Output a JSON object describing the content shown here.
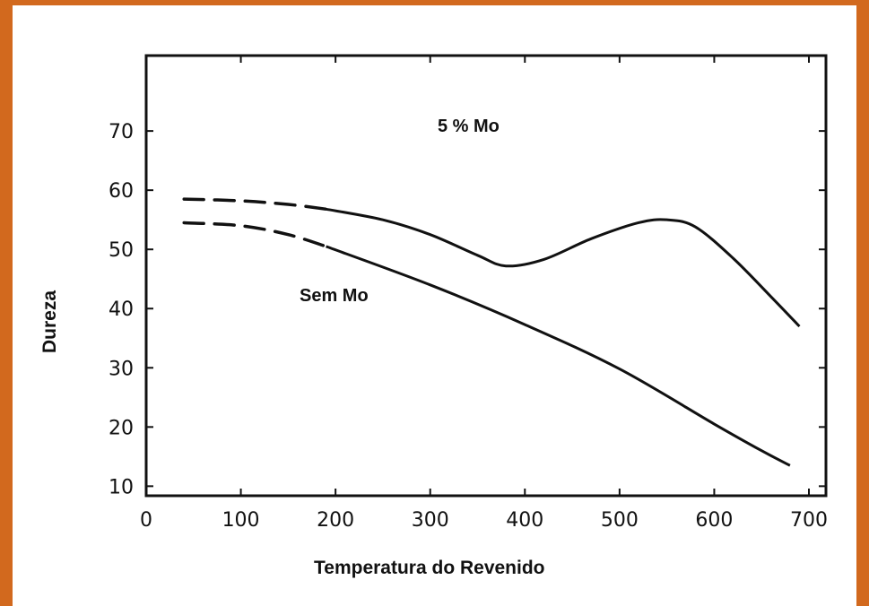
{
  "chart_data": {
    "type": "line",
    "xlabel": "Temperatura do Revenido",
    "ylabel": "Dureza",
    "xlim": [
      0,
      700
    ],
    "ylim": [
      0,
      70
    ],
    "xticks": [
      "0",
      "100",
      "200",
      "300",
      "400",
      "500",
      "600",
      "700"
    ],
    "yticks": [
      "10",
      "20",
      "30",
      "40",
      "50",
      "60",
      "70"
    ],
    "series": [
      {
        "name": "5 % Mo",
        "dashed_segment": {
          "x": [
            40,
            100,
            150,
            190
          ],
          "y": [
            58.5,
            58.2,
            57.6,
            56.8
          ]
        },
        "solid_segment": {
          "x": [
            190,
            250,
            300,
            350,
            380,
            420,
            470,
            520,
            550,
            580,
            620,
            660,
            690
          ],
          "y": [
            56.8,
            55,
            52.5,
            49,
            47.2,
            48.3,
            51.8,
            54.5,
            55,
            53.8,
            48.5,
            42,
            37
          ]
        }
      },
      {
        "name": "Sem Mo",
        "dashed_segment": {
          "x": [
            40,
            100,
            150,
            190
          ],
          "y": [
            54.5,
            54,
            52.5,
            50.5
          ]
        },
        "solid_segment": {
          "x": [
            190,
            300,
            400,
            500,
            600,
            650,
            680
          ],
          "y": [
            50.5,
            44,
            37.3,
            29.8,
            20.5,
            16,
            13.5
          ]
        }
      }
    ],
    "annotations": [
      "5 % Mo",
      "Sem Mo"
    ],
    "grid": false
  }
}
